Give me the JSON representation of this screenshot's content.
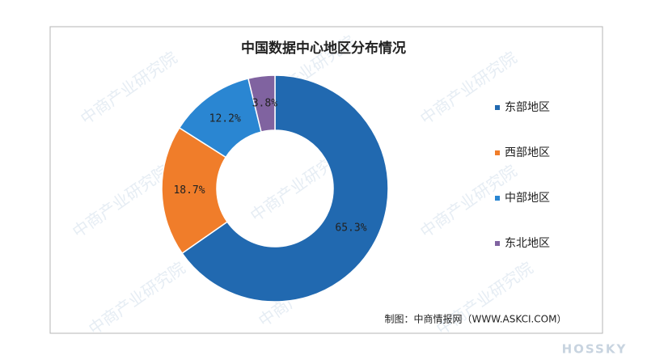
{
  "chart_data": {
    "type": "donut",
    "title": "中国数据中心地区分布情况",
    "categories": [
      "东部地区",
      "西部地区",
      "中部地区",
      "东北地区"
    ],
    "values": [
      65.3,
      18.7,
      12.2,
      3.8
    ],
    "value_labels": [
      "65.3%",
      "18.7%",
      "12.2%",
      "3.8%"
    ],
    "colors": [
      "#2169b0",
      "#f07d2a",
      "#2a86d2",
      "#8063a0"
    ],
    "legend": "right",
    "source": "制图：中商情报网（WWW.ASKCI.COM）",
    "watermark": "中商产业研究院",
    "logo": "HOSSKY"
  }
}
